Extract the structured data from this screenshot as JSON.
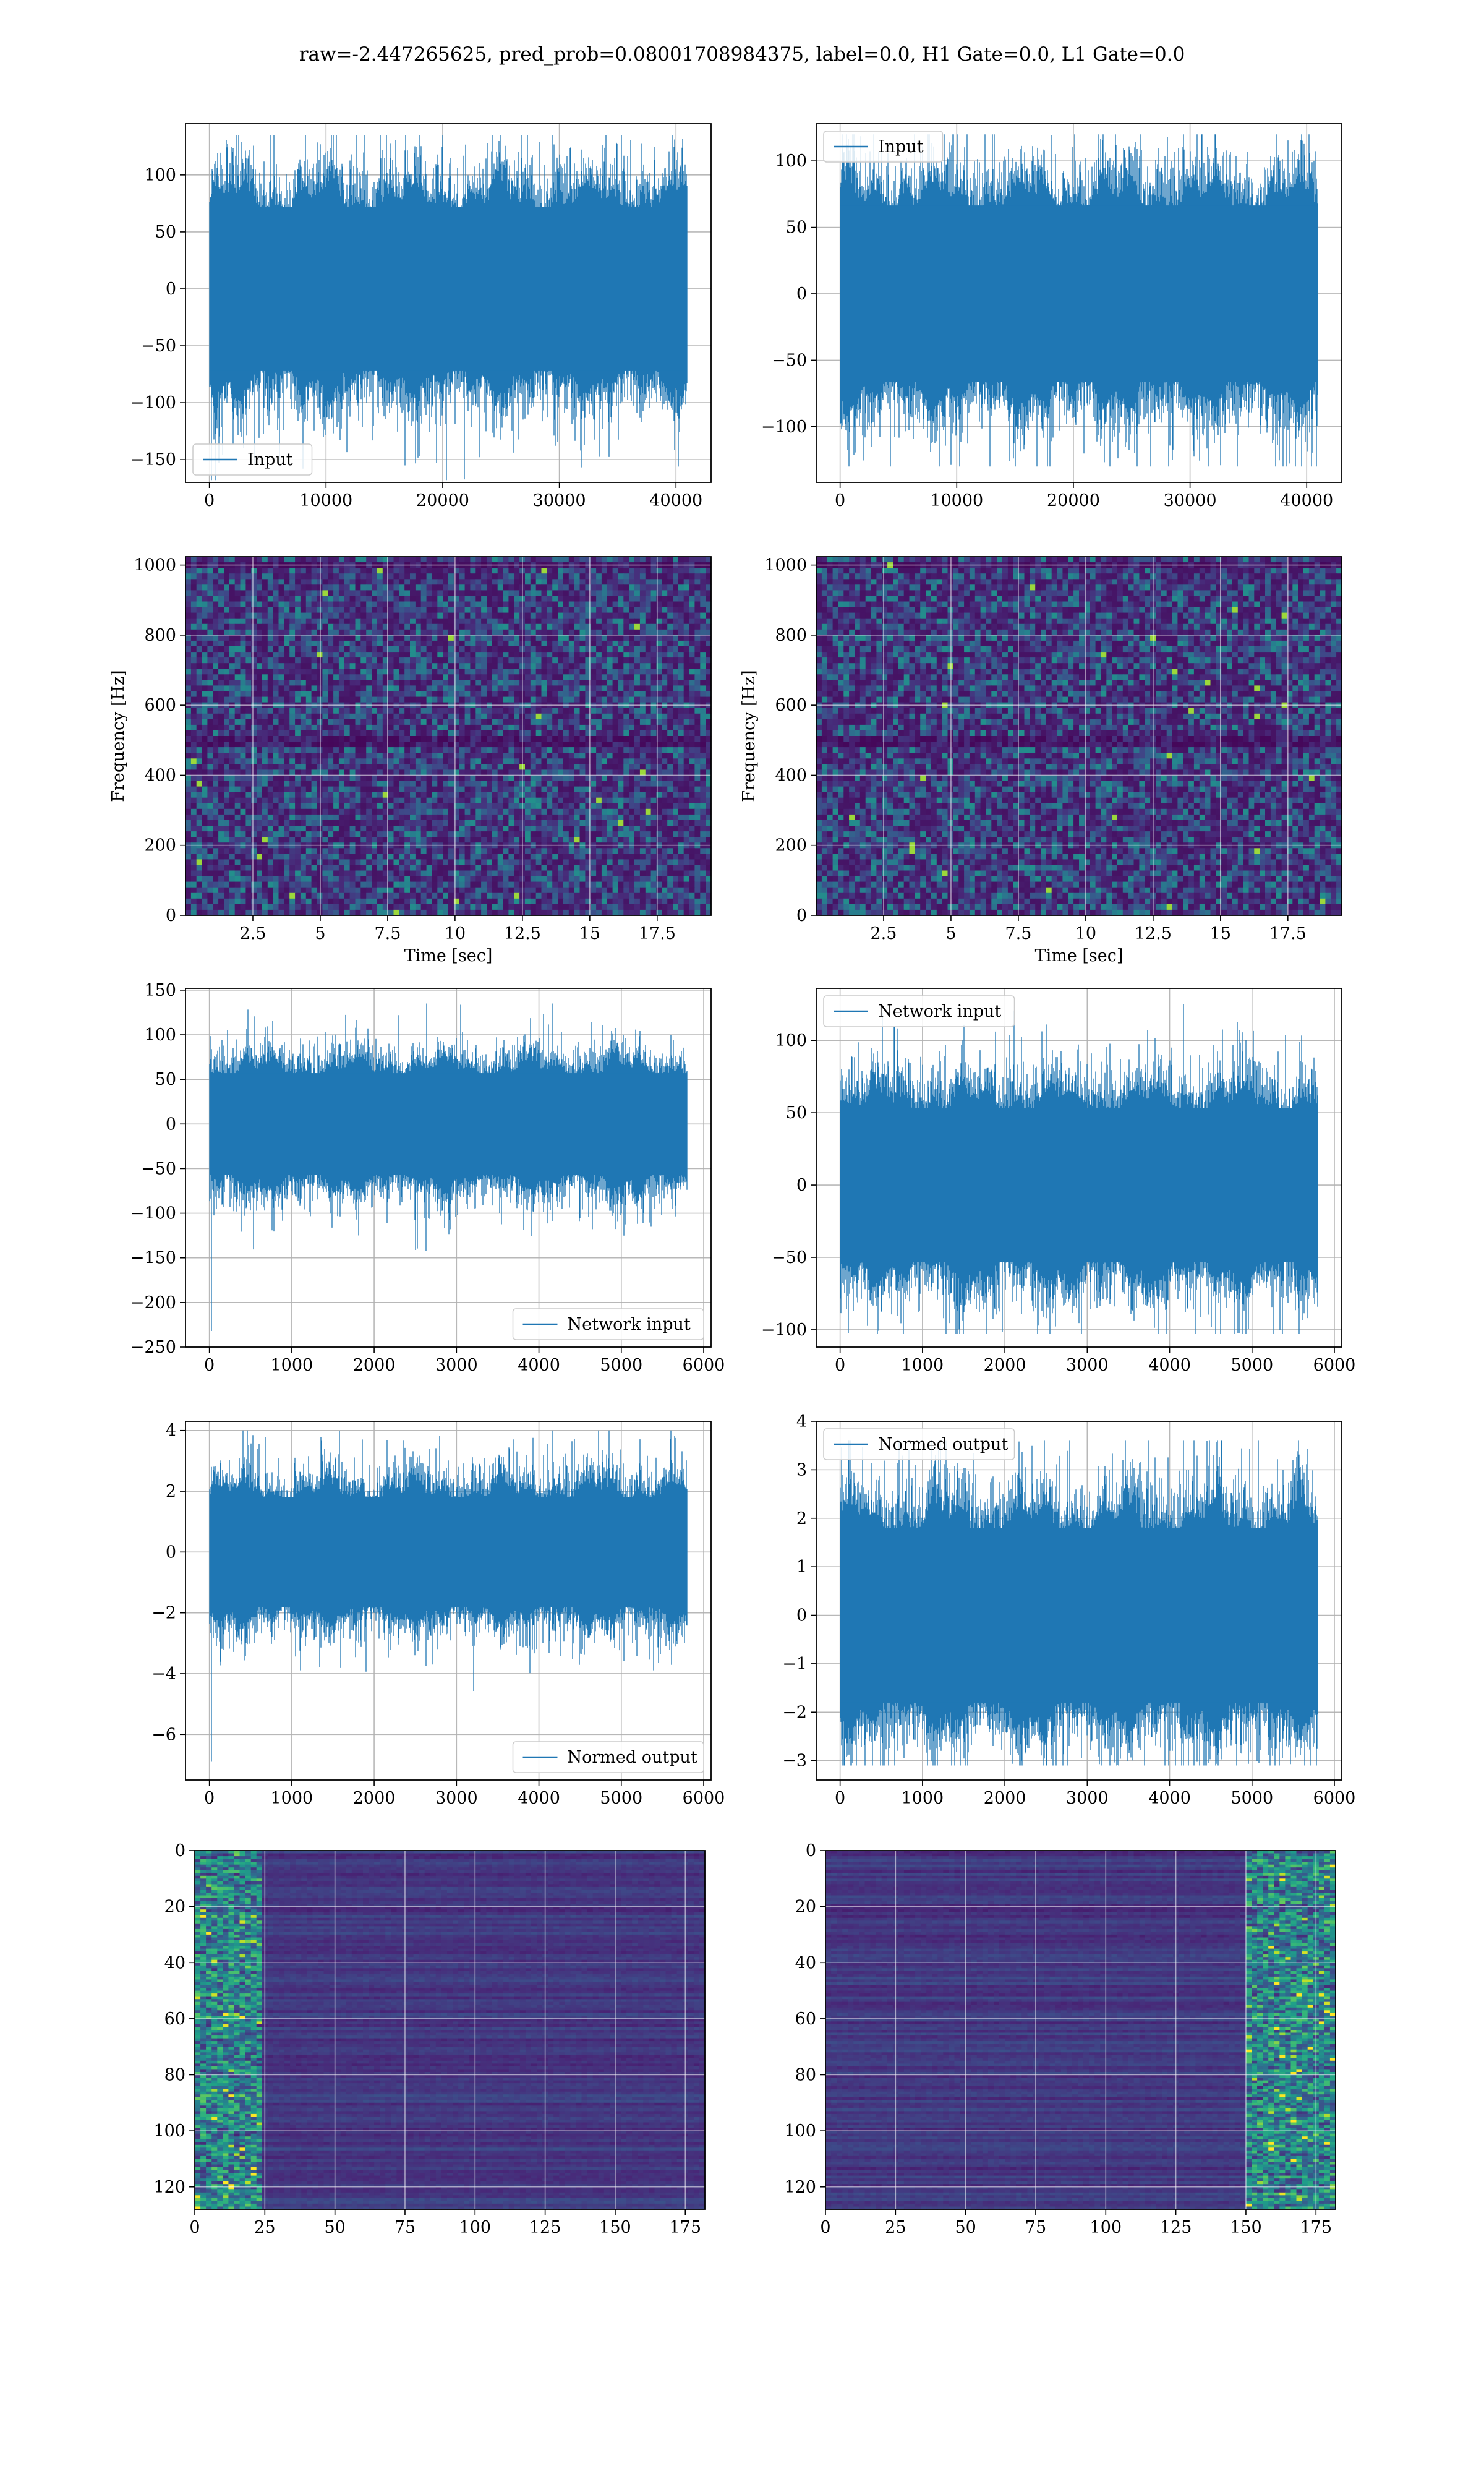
{
  "suptitle": "raw=-2.447265625, pred_prob=0.08001708984375, label=0.0, H1 Gate=0.0, L1 Gate=0.0",
  "colors": {
    "series": "#1f77b4",
    "grid": "#b0b0b0",
    "viridis_dark": "#440154",
    "viridis_light": "#fde725"
  },
  "chart_data": [
    {
      "type": "line",
      "panel": "r1c1",
      "series": [
        {
          "name": "Input",
          "kind": "noise",
          "n": 40960,
          "values_summary": {
            "mean": 0,
            "std": 38,
            "min": -168,
            "max": 135
          }
        }
      ],
      "xlim": [
        -2048,
        43008
      ],
      "ylim": [
        -170,
        145
      ],
      "xticks": [
        0,
        10000,
        20000,
        30000,
        40000
      ],
      "yticks": [
        -150,
        -100,
        -50,
        0,
        50,
        100
      ],
      "legend": "lower-left",
      "grid": true
    },
    {
      "type": "line",
      "panel": "r1c2",
      "series": [
        {
          "name": "Input",
          "kind": "noise",
          "n": 40960,
          "values_summary": {
            "mean": 0,
            "std": 35,
            "min": -130,
            "max": 120
          }
        }
      ],
      "xlim": [
        -2048,
        43008
      ],
      "ylim": [
        -142,
        128
      ],
      "xticks": [
        0,
        10000,
        20000,
        30000,
        40000
      ],
      "yticks": [
        -100,
        -50,
        0,
        50,
        100
      ],
      "legend": "upper-left",
      "grid": true
    },
    {
      "type": "heatmap",
      "panel": "r2c1",
      "colormap": "viridis",
      "xlabel": "Time [sec]",
      "ylabel": "Frequency [Hz]",
      "xlim": [
        0,
        19.5
      ],
      "ylim": [
        0,
        1024
      ],
      "xticks": [
        2.5,
        5.0,
        7.5,
        10.0,
        12.5,
        15.0,
        17.5
      ],
      "yticks": [
        0,
        200,
        400,
        600,
        800,
        1000
      ],
      "features": [
        {
          "kind": "dark_band",
          "freq_hz": 500
        },
        {
          "kind": "dark_band",
          "freq_hz": 1000
        }
      ],
      "grid": true
    },
    {
      "type": "heatmap",
      "panel": "r2c2",
      "colormap": "viridis",
      "xlabel": "Time [sec]",
      "ylabel": "Frequency [Hz]",
      "xlim": [
        0,
        19.5
      ],
      "ylim": [
        0,
        1024
      ],
      "xticks": [
        2.5,
        5.0,
        7.5,
        10.0,
        12.5,
        15.0,
        17.5
      ],
      "yticks": [
        0,
        200,
        400,
        600,
        800,
        1000
      ],
      "features": [
        {
          "kind": "dark_band",
          "freq_hz": 500
        },
        {
          "kind": "dark_band",
          "freq_hz": 1000
        }
      ],
      "grid": true
    },
    {
      "type": "line",
      "panel": "r3c1",
      "series": [
        {
          "name": "Network input",
          "kind": "noise",
          "n": 5800,
          "values_summary": {
            "mean": 0,
            "std": 30,
            "min": -232,
            "max": 135
          }
        }
      ],
      "xlim": [
        -290,
        6090
      ],
      "ylim": [
        -250,
        152
      ],
      "xticks": [
        0,
        1000,
        2000,
        3000,
        4000,
        5000,
        6000
      ],
      "yticks": [
        -250,
        -200,
        -150,
        -100,
        -50,
        0,
        50,
        100,
        150
      ],
      "legend": "lower-right",
      "grid": true
    },
    {
      "type": "line",
      "panel": "r3c2",
      "series": [
        {
          "name": "Network input",
          "kind": "noise",
          "n": 5800,
          "values_summary": {
            "mean": 0,
            "std": 28,
            "min": -103,
            "max": 125
          }
        }
      ],
      "xlim": [
        -290,
        6090
      ],
      "ylim": [
        -112,
        136
      ],
      "xticks": [
        0,
        1000,
        2000,
        3000,
        4000,
        5000,
        6000
      ],
      "yticks": [
        -100,
        -50,
        0,
        50,
        100
      ],
      "legend": "upper-left",
      "grid": true
    },
    {
      "type": "line",
      "panel": "r4c1",
      "series": [
        {
          "name": "Normed output",
          "kind": "noise",
          "n": 5800,
          "values_summary": {
            "mean": 0,
            "std": 0.95,
            "min": -6.9,
            "max": 4.0
          }
        }
      ],
      "xlim": [
        -290,
        6090
      ],
      "ylim": [
        -7.5,
        4.3
      ],
      "xticks": [
        0,
        1000,
        2000,
        3000,
        4000,
        5000,
        6000
      ],
      "yticks": [
        -6,
        -4,
        -2,
        0,
        2,
        4
      ],
      "legend": "lower-right",
      "grid": true
    },
    {
      "type": "line",
      "panel": "r4c2",
      "series": [
        {
          "name": "Normed output",
          "kind": "noise",
          "n": 5800,
          "values_summary": {
            "mean": 0,
            "std": 0.95,
            "min": -3.1,
            "max": 3.6
          }
        }
      ],
      "xlim": [
        -290,
        6090
      ],
      "ylim": [
        -3.4,
        4.0
      ],
      "xticks": [
        0,
        1000,
        2000,
        3000,
        4000,
        5000,
        6000
      ],
      "yticks": [
        -3,
        -2,
        -1,
        0,
        1,
        2,
        3,
        4
      ],
      "legend": "upper-left",
      "grid": true
    },
    {
      "type": "heatmap",
      "panel": "r5c1",
      "colormap": "viridis",
      "rows": 128,
      "cols": 182,
      "xlim": [
        0,
        182
      ],
      "ylim": [
        128,
        0
      ],
      "xticks": [
        0,
        25,
        50,
        75,
        100,
        125,
        150,
        175
      ],
      "yticks": [
        0,
        20,
        40,
        60,
        80,
        100,
        120
      ],
      "features": [
        {
          "kind": "bright_columns",
          "cols": [
            0,
            22
          ]
        }
      ],
      "grid": true
    },
    {
      "type": "heatmap",
      "panel": "r5c2",
      "colormap": "viridis",
      "rows": 128,
      "cols": 182,
      "xlim": [
        0,
        182
      ],
      "ylim": [
        128,
        0
      ],
      "xticks": [
        0,
        25,
        50,
        75,
        100,
        125,
        150,
        175
      ],
      "yticks": [
        0,
        20,
        40,
        60,
        80,
        100,
        120
      ],
      "features": [
        {
          "kind": "bright_columns",
          "cols": [
            150,
            182
          ]
        }
      ],
      "grid": true
    }
  ]
}
